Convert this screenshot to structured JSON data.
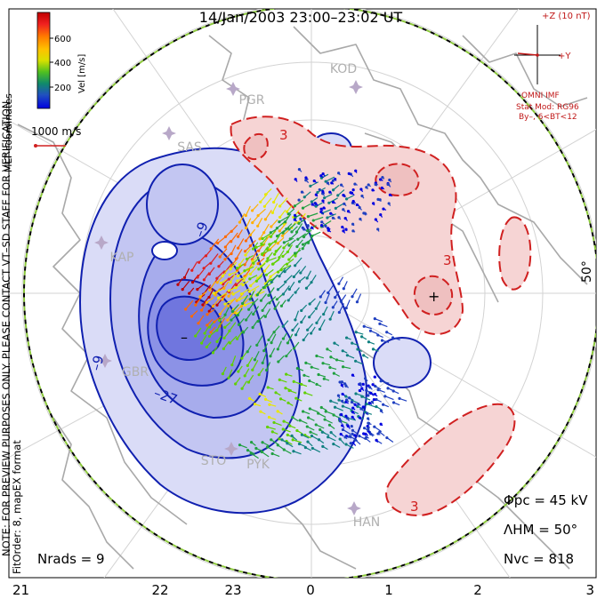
{
  "title": "14/Jan/2003 23:00–23:02 UT",
  "colorbar": {
    "label": "Vel [m/s]",
    "ticks": [
      "600",
      "400",
      "200"
    ],
    "colors": [
      "#c00000",
      "#e02020",
      "#ff6a00",
      "#ffb000",
      "#e8e800",
      "#60d000",
      "#20a040",
      "#108080",
      "#2040c0",
      "#0000e0"
    ]
  },
  "mlt_label": "MLT coordinates",
  "ref_vector": "1000 m/s",
  "imf": {
    "z_label": "+Z (10 nT)",
    "y_label": "+Y",
    "source": "OMNI IMF",
    "model": "Stat Mod: RG96",
    "condition": "By–, 6<BT<12"
  },
  "side_note": {
    "line1": "NOTE: FOR PREVIEW PURPOSES ONLY. PLEASE CONTACT VT–SD STAFF FOR VERIFICATION.",
    "line2": "FitOrder: 8, mapEX format"
  },
  "stats": {
    "phi_pc": "Φpc = 45 kV",
    "lambda_hm": "ΛHM = 50°",
    "n_vc": "Nvc = 818",
    "n_rads": "Nrads = 9"
  },
  "mlt_ticks": [
    "21",
    "22",
    "23",
    "0",
    "1",
    "2",
    "3"
  ],
  "lat_label": "50°",
  "stations": [
    "KOD",
    "PGR",
    "SAS",
    "KAP",
    "GBR",
    "STO",
    "PYK",
    "HAN"
  ],
  "contour_labels": {
    "neg": [
      "–9",
      "–9",
      "–27"
    ],
    "pos": [
      "3",
      "3",
      "3"
    ]
  },
  "extrema": {
    "min": "–",
    "max": "+"
  },
  "colors": {
    "neg_fill": "#6a70e0",
    "neg_line": "#1020b0",
    "pos_fill": "#f6d4d4",
    "pos_line": "#d02020",
    "land": "#aaaaaa",
    "grid": "#cfcfcf"
  }
}
